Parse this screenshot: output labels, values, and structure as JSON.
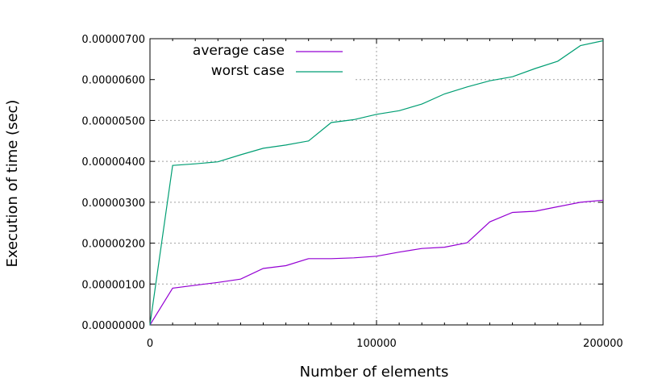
{
  "chart_data": {
    "type": "line",
    "title": "",
    "xlabel": "Number of elements",
    "ylabel": "Execution of time (sec)",
    "xlim": [
      0,
      200000
    ],
    "ylim": [
      0,
      7e-06
    ],
    "x_ticks": [
      0,
      100000,
      200000
    ],
    "x_tick_labels": [
      "0",
      "100000",
      "200000"
    ],
    "y_ticks": [
      0,
      1e-06,
      2e-06,
      3e-06,
      4e-06,
      5e-06,
      6e-06,
      7e-06
    ],
    "y_tick_labels": [
      "0.00000000",
      "0.00000100",
      "0.00000200",
      "0.00000300",
      "0.00000400",
      "0.00000500",
      "0.00000600",
      "0.00000700"
    ],
    "grid": true,
    "legend_position": "top-left",
    "x": [
      0,
      10000,
      20000,
      30000,
      40000,
      50000,
      60000,
      70000,
      80000,
      90000,
      100000,
      110000,
      120000,
      130000,
      140000,
      150000,
      160000,
      170000,
      180000,
      190000,
      200000
    ],
    "series": [
      {
        "name": "average case",
        "color": "#9400d3",
        "values": [
          0,
          9e-07,
          9.7e-07,
          1.04e-06,
          1.12e-06,
          1.38e-06,
          1.45e-06,
          1.62e-06,
          1.62e-06,
          1.64e-06,
          1.68e-06,
          1.78e-06,
          1.87e-06,
          1.9e-06,
          2.01e-06,
          2.52e-06,
          2.75e-06,
          2.78e-06,
          2.89e-06,
          3e-06,
          3.05e-06
        ]
      },
      {
        "name": "worst case",
        "color": "#009e73",
        "values": [
          0,
          3.9e-06,
          3.94e-06,
          3.99e-06,
          4.16e-06,
          4.32e-06,
          4.4e-06,
          4.5e-06,
          4.95e-06,
          5.02e-06,
          5.15e-06,
          5.24e-06,
          5.4e-06,
          5.65e-06,
          5.82e-06,
          5.97e-06,
          6.07e-06,
          6.27e-06,
          6.45e-06,
          6.83e-06,
          6.95e-06
        ]
      }
    ]
  }
}
